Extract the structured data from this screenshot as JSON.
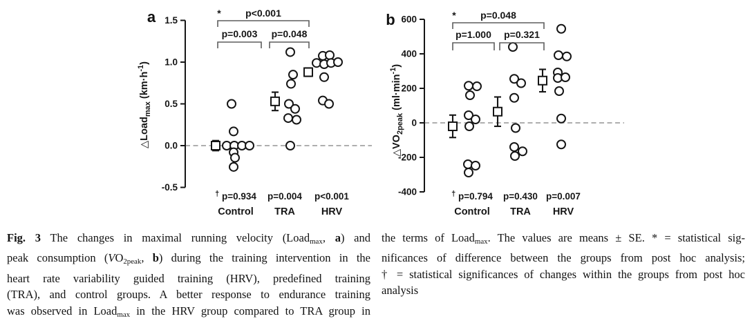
{
  "figure_label": "Fig. 3",
  "chart_data": [
    {
      "type": "scatter",
      "panel_label": "a",
      "ylabel": "ΔLoadmax (km·h-1)",
      "ylabel_parts": [
        {
          "text": "△Load"
        },
        {
          "text": "max",
          "style": "sub"
        },
        {
          "text": " (km·h",
          "style": ""
        },
        {
          "text": "-1",
          "style": "sup"
        },
        {
          "text": ")",
          "style": ""
        }
      ],
      "ylim": [
        -0.5,
        1.5
      ],
      "yticks": [
        {
          "v": 1.5,
          "label": "1.5"
        },
        {
          "v": 1.0,
          "label": "1.0"
        },
        {
          "v": 0.5,
          "label": "0.5"
        },
        {
          "v": 0.0,
          "label": "0.0"
        },
        {
          "v": -0.5,
          "label": "-0.5"
        }
      ],
      "zero_line": true,
      "grid": false,
      "groups": [
        {
          "name": "Control",
          "within_p": "p=0.934",
          "dagger": true,
          "mean": 0.0,
          "se": 0.06,
          "points": [
            {
              "dx": -3,
              "v": 0.5
            },
            {
              "dx": 0,
              "v": 0.17
            },
            {
              "dx": -10,
              "v": 0.0
            },
            {
              "dx": 1,
              "v": 0.0
            },
            {
              "dx": 12,
              "v": 0.0
            },
            {
              "dx": 23,
              "v": 0.0
            },
            {
              "dx": 0,
              "v": -0.08
            },
            {
              "dx": 2,
              "v": -0.145
            },
            {
              "dx": 0,
              "v": -0.255
            }
          ]
        },
        {
          "name": "TRA",
          "within_p": "p=0.004",
          "dagger": false,
          "mean": 0.53,
          "se": 0.11,
          "points": [
            {
              "dx": -1,
              "v": 1.12
            },
            {
              "dx": 3,
              "v": 0.85
            },
            {
              "dx": 0,
              "v": 0.74
            },
            {
              "dx": -3,
              "v": 0.5
            },
            {
              "dx": 6,
              "v": 0.44
            },
            {
              "dx": -4,
              "v": 0.33
            },
            {
              "dx": 8,
              "v": 0.31
            },
            {
              "dx": -1,
              "v": 0.0
            }
          ]
        },
        {
          "name": "HRV",
          "within_p": "p<0.001",
          "dagger": false,
          "mean": 0.88,
          "se": 0.05,
          "points": [
            {
              "dx": -6,
              "v": 1.075
            },
            {
              "dx": 4,
              "v": 1.083
            },
            {
              "dx": -15,
              "v": 0.99
            },
            {
              "dx": -4,
              "v": 0.975
            },
            {
              "dx": 6,
              "v": 0.99
            },
            {
              "dx": 16,
              "v": 1.0
            },
            {
              "dx": -4,
              "v": 0.82
            },
            {
              "dx": -6,
              "v": 0.54
            },
            {
              "dx": 3,
              "v": 0.5
            }
          ]
        }
      ],
      "comparisons": [
        {
          "pair": "Control vs HRV",
          "label": "p<0.001",
          "star": "*"
        },
        {
          "pair": "Control vs TRA",
          "label": "p=0.003",
          "star": ""
        },
        {
          "pair": "TRA vs HRV",
          "label": "p=0.048",
          "star": ""
        }
      ]
    },
    {
      "type": "scatter",
      "panel_label": "b",
      "ylabel": "ΔVO2peak (ml·min-1)",
      "ylabel_parts": [
        {
          "text": "△VO"
        },
        {
          "text": "2peak",
          "style": "sub"
        },
        {
          "text": " (ml·min",
          "style": ""
        },
        {
          "text": "-1",
          "style": "sup"
        },
        {
          "text": ")",
          "style": ""
        }
      ],
      "ylim": [
        -400,
        600
      ],
      "yticks": [
        {
          "v": 600,
          "label": "600"
        },
        {
          "v": 400,
          "label": "400"
        },
        {
          "v": 200,
          "label": "200"
        },
        {
          "v": 0,
          "label": "0"
        },
        {
          "v": -200,
          "label": "-200"
        },
        {
          "v": -400,
          "label": "-400"
        }
      ],
      "zero_line": true,
      "grid": false,
      "groups": [
        {
          "name": "Control",
          "within_p": "p=0.794",
          "dagger": true,
          "mean": -20,
          "se": 65,
          "points": [
            {
              "dx": -5,
              "v": 215
            },
            {
              "dx": 7,
              "v": 212
            },
            {
              "dx": -3,
              "v": 160
            },
            {
              "dx": -5,
              "v": 44
            },
            {
              "dx": 5,
              "v": 20
            },
            {
              "dx": -4,
              "v": -20
            },
            {
              "dx": -6,
              "v": -240
            },
            {
              "dx": 5,
              "v": -248
            },
            {
              "dx": -5,
              "v": -288
            }
          ]
        },
        {
          "name": "TRA",
          "within_p": "p=0.430",
          "dagger": false,
          "mean": 65,
          "se": 85,
          "points": [
            {
              "dx": -6,
              "v": 440
            },
            {
              "dx": -4,
              "v": 255
            },
            {
              "dx": 6,
              "v": 230
            },
            {
              "dx": -4,
              "v": 145
            },
            {
              "dx": -2,
              "v": -30
            },
            {
              "dx": -4,
              "v": -140
            },
            {
              "dx": 8,
              "v": -165
            },
            {
              "dx": -3,
              "v": -192
            }
          ]
        },
        {
          "name": "HRV",
          "within_p": "p=0.007",
          "dagger": false,
          "mean": 245,
          "se": 65,
          "points": [
            {
              "dx": -1,
              "v": 545
            },
            {
              "dx": -5,
              "v": 392
            },
            {
              "dx": 7,
              "v": 385
            },
            {
              "dx": -6,
              "v": 292
            },
            {
              "dx": -6,
              "v": 260
            },
            {
              "dx": 5,
              "v": 264
            },
            {
              "dx": -4,
              "v": 184
            },
            {
              "dx": -1,
              "v": 25
            },
            {
              "dx": -1,
              "v": -125
            }
          ]
        }
      ],
      "comparisons": [
        {
          "pair": "Control vs HRV",
          "label": "p=0.048",
          "star": "*"
        },
        {
          "pair": "Control vs TRA",
          "label": "p=1.000",
          "star": ""
        },
        {
          "pair": "TRA vs HRV",
          "label": "p=0.321",
          "star": ""
        }
      ]
    }
  ],
  "caption": {
    "columns": [
      {
        "lines": [
          [
            {
              "t": "Fig. 3",
              "b": true
            },
            {
              "t": " The changes in maximal running velocity (Load"
            },
            {
              "t": "max",
              "sub": true
            },
            {
              "t": ", "
            },
            {
              "t": "a",
              "b": true
            },
            {
              "t": ") and"
            }
          ],
          [
            {
              "t": "peak consumption ("
            },
            {
              "t": "V",
              "i": true
            },
            {
              "t": "O"
            },
            {
              "t": "2peak",
              "sub": true
            },
            {
              "t": ", "
            },
            {
              "t": "b",
              "b": true
            },
            {
              "t": ") during the training intervention in the"
            }
          ],
          [
            {
              "t": "heart rate variability guided training (HRV), predefined training"
            }
          ],
          [
            {
              "t": "(TRA), and control groups. A better response to endurance training"
            }
          ],
          [
            {
              "t": "was observed in Load"
            },
            {
              "t": "max",
              "sub": true
            },
            {
              "t": " in the HRV group compared to TRA group in"
            }
          ]
        ]
      },
      {
        "lines": [
          [
            {
              "t": "the terms of Load"
            },
            {
              "t": "max",
              "sub": true
            },
            {
              "t": ". The values are means ± SE. * = statistical sig-"
            }
          ],
          [
            {
              "t": "nificances of difference between the groups from post hoc analysis;"
            }
          ],
          [
            {
              "t": "† = statistical significances of changes within the groups from post hoc"
            }
          ],
          [
            {
              "t": "analysis"
            }
          ]
        ]
      }
    ]
  }
}
